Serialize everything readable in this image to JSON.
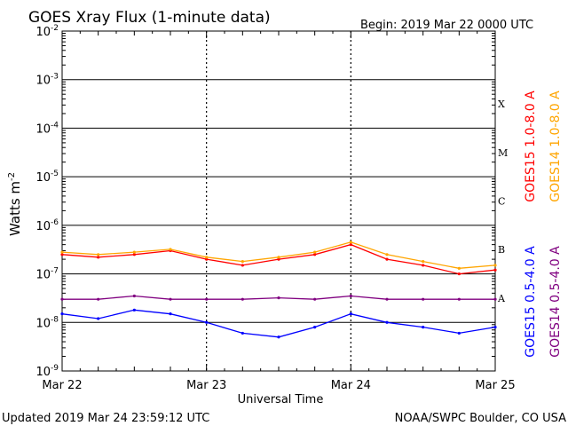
{
  "chart_data": {
    "type": "line",
    "title": "GOES Xray Flux (1-minute data)",
    "begin_label": "Begin:  2019 Mar 22 0000 UTC",
    "xlabel": "Universal Time",
    "ylabel": "Watts m",
    "ylabel_sup": "-2",
    "y_scale": "log",
    "ylim": [
      1e-09,
      0.01
    ],
    "y_tick_labels": [
      {
        "base": "10",
        "exp": "-9"
      },
      {
        "base": "10",
        "exp": "-8"
      },
      {
        "base": "10",
        "exp": "-7"
      },
      {
        "base": "10",
        "exp": "-6"
      },
      {
        "base": "10",
        "exp": "-5"
      },
      {
        "base": "10",
        "exp": "-4"
      },
      {
        "base": "10",
        "exp": "-3"
      },
      {
        "base": "10",
        "exp": "-2"
      }
    ],
    "x_range_days": [
      "2019-03-22",
      "2019-03-25"
    ],
    "x_tick_labels": [
      "Mar 22",
      "Mar 23",
      "Mar 24",
      "Mar 25"
    ],
    "flare_classes": [
      {
        "label": "X",
        "value": 0.0001
      },
      {
        "label": "M",
        "value": 1e-05
      },
      {
        "label": "C",
        "value": 1e-06
      },
      {
        "label": "B",
        "value": 1e-07
      },
      {
        "label": "A",
        "value": 1e-08
      }
    ],
    "grid": true,
    "series": [
      {
        "name": "GOES15 1.0-8.0 A",
        "color": "#ff0000",
        "x": [
          "2019-03-22 00:00",
          "2019-03-22 06:00",
          "2019-03-22 12:00",
          "2019-03-22 18:00",
          "2019-03-23 00:00",
          "2019-03-23 06:00",
          "2019-03-23 12:00",
          "2019-03-23 18:00",
          "2019-03-24 00:00",
          "2019-03-24 06:00",
          "2019-03-24 12:00",
          "2019-03-24 18:00",
          "2019-03-25 00:00"
        ],
        "values": [
          2.5e-07,
          2.2e-07,
          2.5e-07,
          3e-07,
          2e-07,
          1.5e-07,
          2e-07,
          2.5e-07,
          4e-07,
          2e-07,
          1.5e-07,
          1e-07,
          1.2e-07
        ]
      },
      {
        "name": "GOES14 1.0-8.0 A",
        "color": "#ffa500",
        "x": [
          "2019-03-22 00:00",
          "2019-03-22 06:00",
          "2019-03-22 12:00",
          "2019-03-22 18:00",
          "2019-03-23 00:00",
          "2019-03-23 06:00",
          "2019-03-23 12:00",
          "2019-03-23 18:00",
          "2019-03-24 00:00",
          "2019-03-24 06:00",
          "2019-03-24 12:00",
          "2019-03-24 18:00",
          "2019-03-25 00:00"
        ],
        "values": [
          2.8e-07,
          2.5e-07,
          2.8e-07,
          3.2e-07,
          2.2e-07,
          1.8e-07,
          2.2e-07,
          2.8e-07,
          4.5e-07,
          2.5e-07,
          1.8e-07,
          1.3e-07,
          1.5e-07
        ]
      },
      {
        "name": "GOES15 0.5-4.0 A",
        "color": "#0000ff",
        "x": [
          "2019-03-22 00:00",
          "2019-03-22 06:00",
          "2019-03-22 12:00",
          "2019-03-22 18:00",
          "2019-03-23 00:00",
          "2019-03-23 06:00",
          "2019-03-23 12:00",
          "2019-03-23 18:00",
          "2019-03-24 00:00",
          "2019-03-24 06:00",
          "2019-03-24 12:00",
          "2019-03-24 18:00",
          "2019-03-25 00:00"
        ],
        "values": [
          1.5e-08,
          1.2e-08,
          1.8e-08,
          1.5e-08,
          1e-08,
          6e-09,
          5e-09,
          8e-09,
          1.5e-08,
          1e-08,
          8e-09,
          6e-09,
          8e-09
        ]
      },
      {
        "name": "GOES14 0.5-4.0 A",
        "color": "#800080",
        "x": [
          "2019-03-22 00:00",
          "2019-03-22 06:00",
          "2019-03-22 12:00",
          "2019-03-22 18:00",
          "2019-03-23 00:00",
          "2019-03-23 06:00",
          "2019-03-23 12:00",
          "2019-03-23 18:00",
          "2019-03-24 00:00",
          "2019-03-24 06:00",
          "2019-03-24 12:00",
          "2019-03-24 18:00",
          "2019-03-25 00:00"
        ],
        "values": [
          3e-08,
          3e-08,
          3.5e-08,
          3e-08,
          3e-08,
          3e-08,
          3.2e-08,
          3e-08,
          3.5e-08,
          3e-08,
          3e-08,
          3e-08,
          3e-08
        ]
      }
    ]
  },
  "footer": {
    "updated": "Updated 2019 Mar 24 23:59:12 UTC",
    "source": "NOAA/SWPC Boulder, CO USA"
  }
}
